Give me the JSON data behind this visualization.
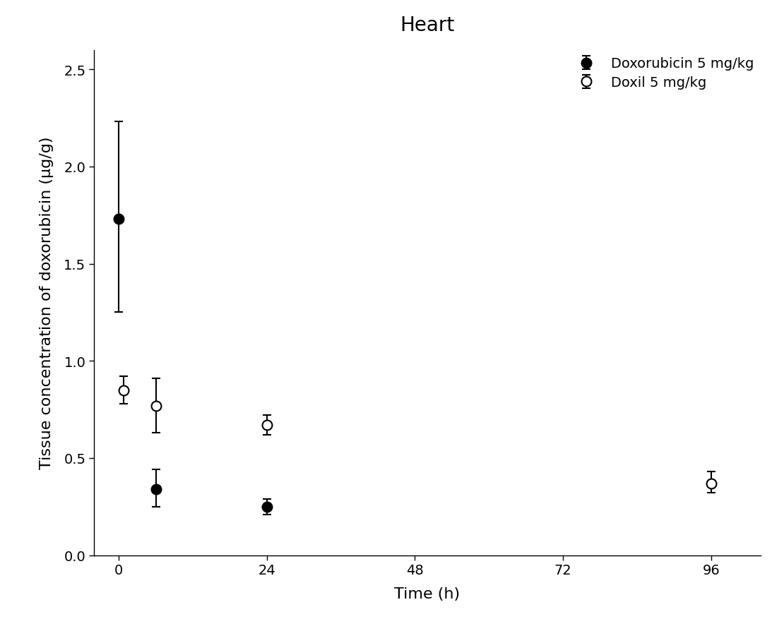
{
  "title": "Heart",
  "xlabel": "Time (h)",
  "ylabel": "Tissue concentration of doxorubicin (μg/g)",
  "xlim": [
    -4,
    104
  ],
  "ylim": [
    0.0,
    2.6
  ],
  "yticks": [
    0.0,
    0.5,
    1.0,
    1.5,
    2.0,
    2.5
  ],
  "xticks": [
    0,
    24,
    48,
    72,
    96
  ],
  "dox": {
    "x": [
      0,
      6,
      24
    ],
    "y": [
      1.73,
      0.34,
      0.25
    ],
    "yerr_lo": [
      0.48,
      0.09,
      0.04
    ],
    "yerr_hi": [
      0.5,
      0.1,
      0.04
    ],
    "label": "Doxorubicin 5 mg/kg"
  },
  "doxil": {
    "x": [
      0.8,
      6,
      24,
      96
    ],
    "y": [
      0.85,
      0.77,
      0.67,
      0.37
    ],
    "yerr_lo": [
      0.07,
      0.14,
      0.05,
      0.05
    ],
    "yerr_hi": [
      0.07,
      0.14,
      0.05,
      0.06
    ],
    "label": "Doxil 5 mg/kg"
  },
  "background_color": "#ffffff",
  "title_fontsize": 20,
  "label_fontsize": 16,
  "tick_fontsize": 14,
  "legend_fontsize": 14,
  "marker_size": 10,
  "capsize": 4,
  "elinewidth": 1.5,
  "markeredgewidth": 1.5
}
